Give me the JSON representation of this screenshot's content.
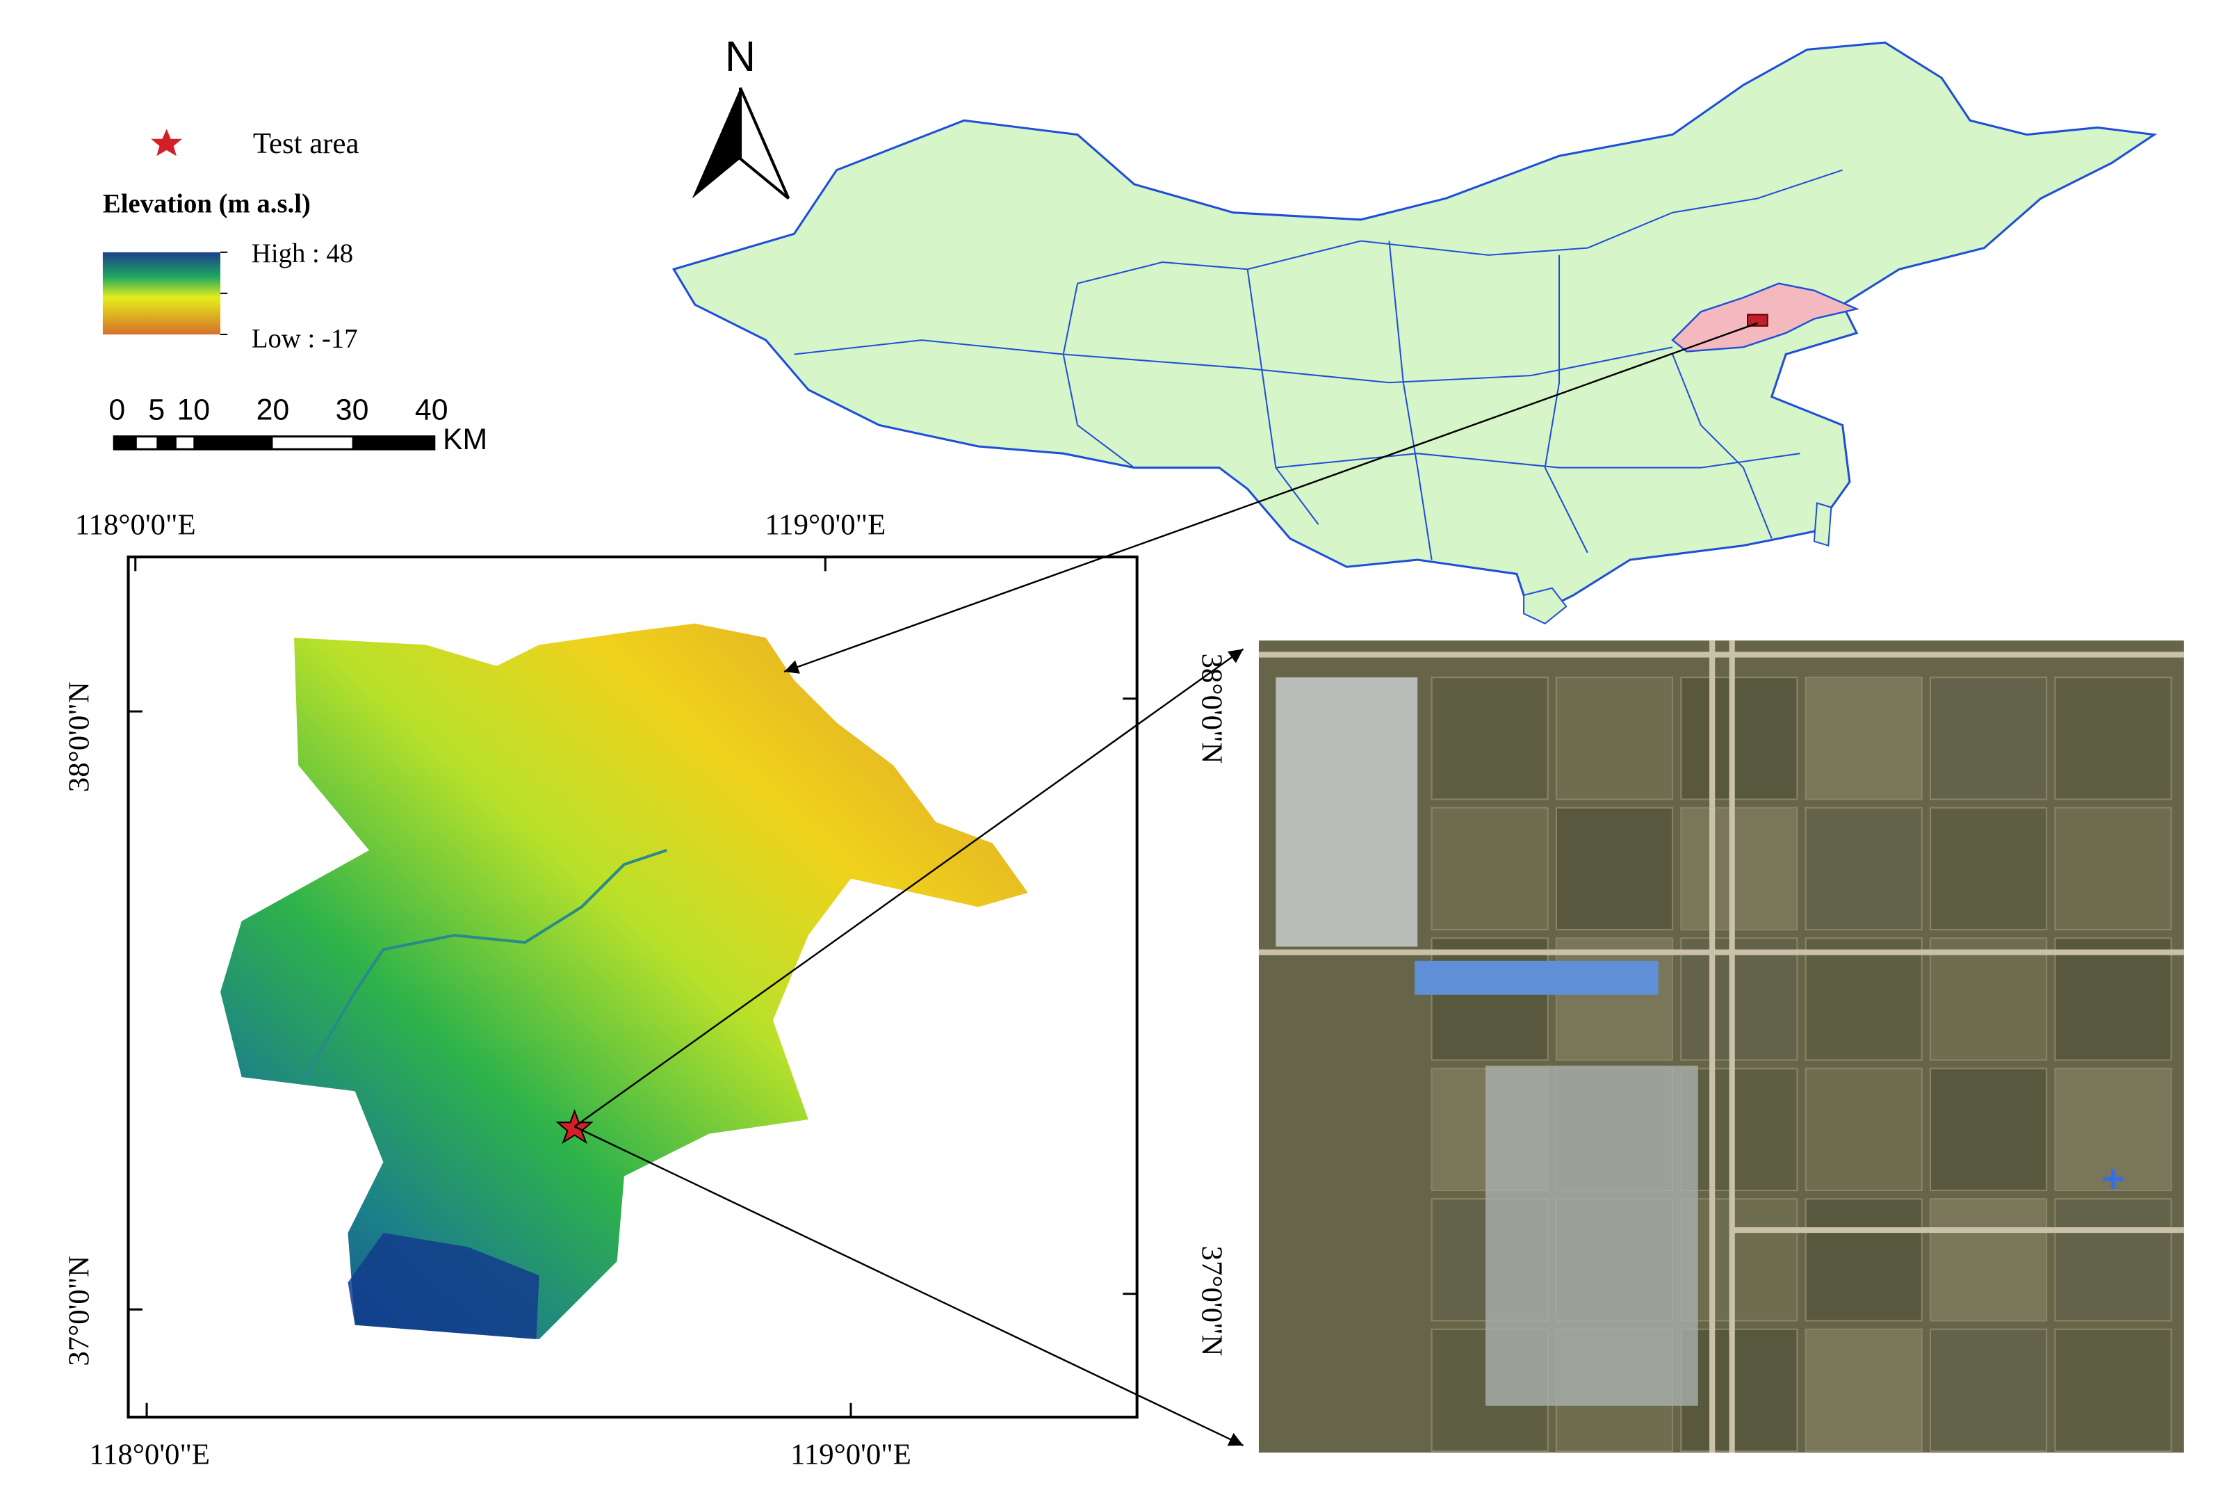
{
  "north_arrow": {
    "label": "N"
  },
  "legend": {
    "test_area": "Test area",
    "elevation_title": "Elevation (m a.s.l)",
    "high": "High : 48",
    "low": "Low : -17"
  },
  "scale_bar": {
    "labels": [
      "0",
      "5",
      "10",
      "20",
      "30",
      "40"
    ],
    "unit": "KM"
  },
  "elevation_map": {
    "top_labels": [
      "118°0'0\"E",
      "119°0'0\"E"
    ],
    "bottom_labels": [
      "118°0'0\"E",
      "119°0'0\"E"
    ],
    "left_labels": [
      "38°0'0\"N",
      "37°0'0\"N"
    ]
  },
  "satellite": {
    "left_labels": [
      "38°0'0\"N",
      "37°0'0\"N"
    ]
  }
}
